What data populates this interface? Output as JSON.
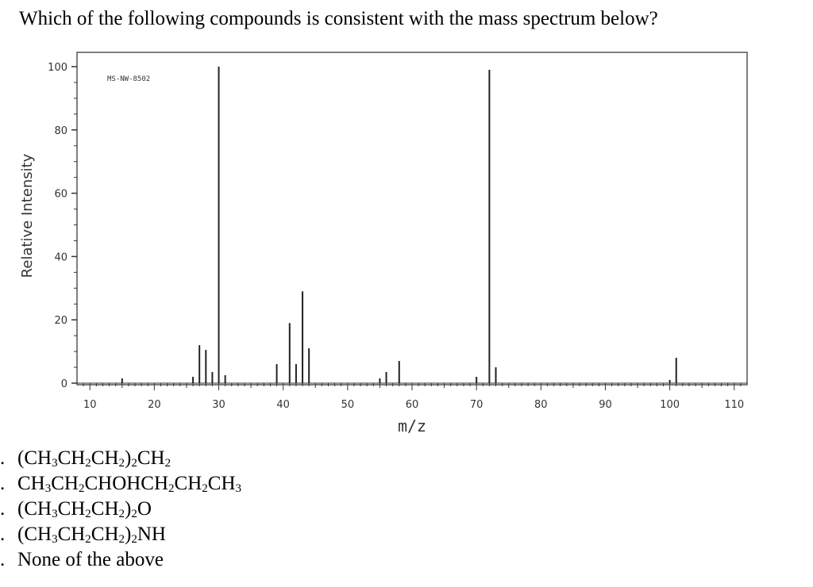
{
  "question": "Which of the following compounds is consistent with the mass spectrum below?",
  "options": [
    {
      "marker": ".",
      "parts": [
        [
          "(CH",
          "n"
        ],
        [
          "3",
          "s"
        ],
        [
          "CH",
          "n"
        ],
        [
          "2",
          "s"
        ],
        [
          "CH",
          "n"
        ],
        [
          "2",
          "s"
        ],
        [
          ")",
          "n"
        ],
        [
          "2",
          "s"
        ],
        [
          "CH",
          "n"
        ],
        [
          "2",
          "s"
        ]
      ]
    },
    {
      "marker": ".",
      "parts": [
        [
          "CH",
          "n"
        ],
        [
          "3",
          "s"
        ],
        [
          "CH",
          "n"
        ],
        [
          "2",
          "s"
        ],
        [
          "CHOHCH",
          "n"
        ],
        [
          "2",
          "s"
        ],
        [
          "CH",
          "n"
        ],
        [
          "2",
          "s"
        ],
        [
          "CH",
          "n"
        ],
        [
          "3",
          "s"
        ]
      ]
    },
    {
      "marker": ".",
      "parts": [
        [
          "(CH",
          "n"
        ],
        [
          "3",
          "s"
        ],
        [
          "CH",
          "n"
        ],
        [
          "2",
          "s"
        ],
        [
          "CH",
          "n"
        ],
        [
          "2",
          "s"
        ],
        [
          ")",
          "n"
        ],
        [
          "2",
          "s"
        ],
        [
          "O",
          "n"
        ]
      ]
    },
    {
      "marker": ".",
      "parts": [
        [
          "(CH",
          "n"
        ],
        [
          "3",
          "s"
        ],
        [
          "CH",
          "n"
        ],
        [
          "2",
          "s"
        ],
        [
          "CH",
          "n"
        ],
        [
          "2",
          "s"
        ],
        [
          ")",
          "n"
        ],
        [
          "2",
          "s"
        ],
        [
          "NH",
          "n"
        ]
      ]
    },
    {
      "marker": ".",
      "parts": [
        [
          "None of the above",
          "n"
        ]
      ]
    }
  ],
  "chart_data": {
    "type": "bar",
    "code": "MS-NW-8502",
    "xlabel": "m/z",
    "ylabel": "Relative Intensity",
    "xlim": [
      8,
      112
    ],
    "ylim": [
      0,
      100
    ],
    "x_ticks": [
      10,
      20,
      30,
      40,
      50,
      60,
      70,
      80,
      90,
      100,
      110
    ],
    "y_ticks": [
      0,
      20,
      40,
      60,
      80,
      100
    ],
    "grid": false,
    "peaks": [
      {
        "x": 15,
        "y": 1.5
      },
      {
        "x": 26,
        "y": 2
      },
      {
        "x": 27,
        "y": 12
      },
      {
        "x": 28,
        "y": 10.5
      },
      {
        "x": 29,
        "y": 3.5
      },
      {
        "x": 30,
        "y": 100
      },
      {
        "x": 31,
        "y": 2.5
      },
      {
        "x": 39,
        "y": 6
      },
      {
        "x": 41,
        "y": 19
      },
      {
        "x": 42,
        "y": 6
      },
      {
        "x": 43,
        "y": 29
      },
      {
        "x": 44,
        "y": 11
      },
      {
        "x": 55,
        "y": 1.5
      },
      {
        "x": 56,
        "y": 3.5
      },
      {
        "x": 58,
        "y": 7
      },
      {
        "x": 70,
        "y": 2
      },
      {
        "x": 72,
        "y": 99
      },
      {
        "x": 73,
        "y": 5
      },
      {
        "x": 100,
        "y": 1
      },
      {
        "x": 101,
        "y": 8
      }
    ]
  }
}
